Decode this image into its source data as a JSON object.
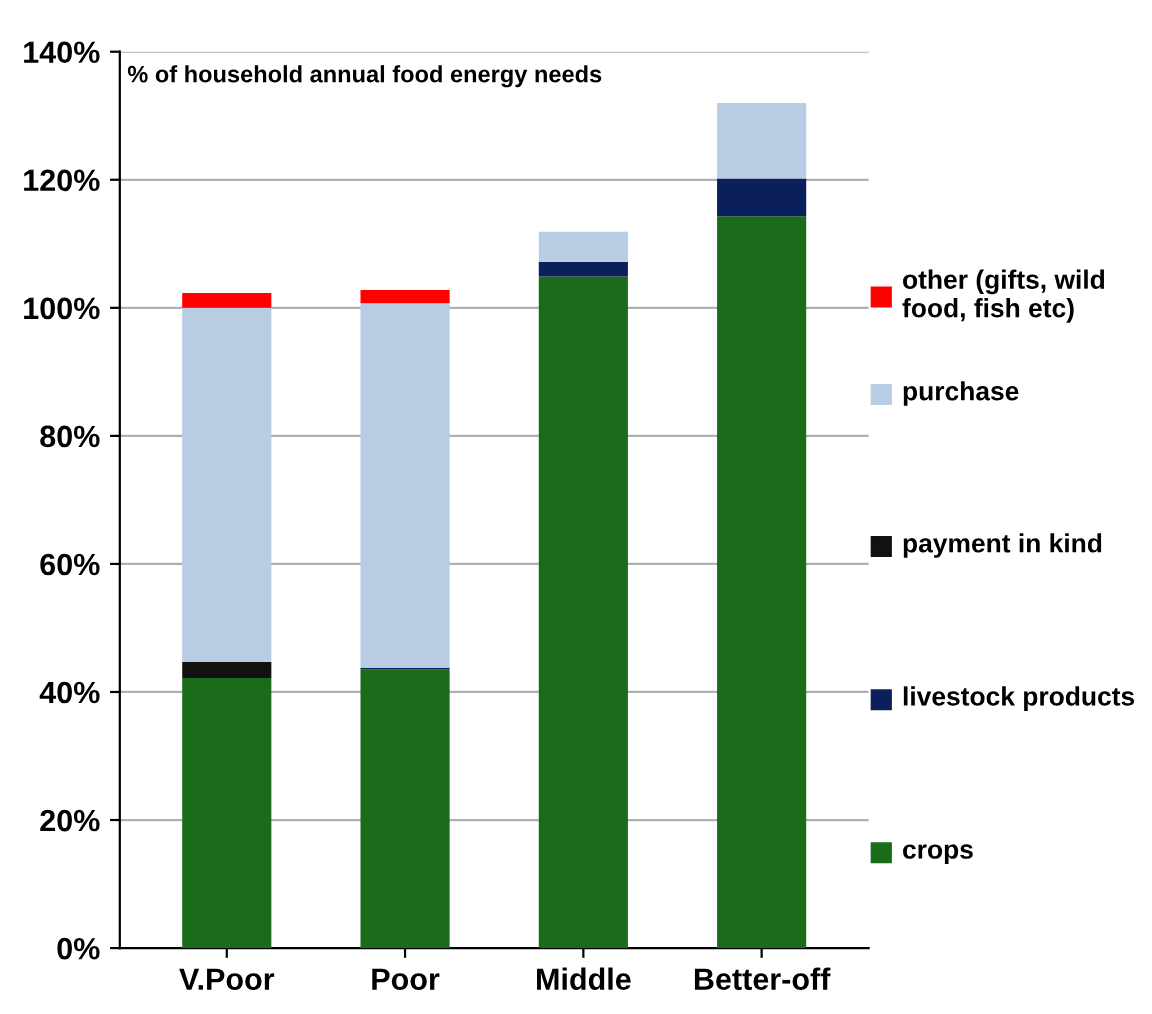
{
  "chart_data": {
    "type": "bar",
    "stacked": true,
    "ylabel": "% of household annual food energy needs",
    "categories": [
      "V.Poor",
      "Poor",
      "Middle",
      "Better-off"
    ],
    "series": [
      {
        "name": "crops",
        "color": "#1a6b1a",
        "values": [
          42.2,
          43.5,
          104.9,
          114.3
        ]
      },
      {
        "name": "livestock products",
        "color": "#0b1f5c",
        "values": [
          0,
          0.3,
          2.3,
          5.9
        ]
      },
      {
        "name": "payment in kind",
        "color": "#111111",
        "values": [
          2.5,
          0,
          0,
          0
        ]
      },
      {
        "name": "purchase",
        "color": "#b8cce4",
        "values": [
          55.3,
          56.9,
          4.7,
          11.8
        ]
      },
      {
        "name": "other (gifts, wild food, fish etc)",
        "color": "#ff0000",
        "values": [
          2.3,
          2.1,
          0,
          0
        ]
      }
    ],
    "ylim": [
      0,
      140
    ],
    "yticks": [
      {
        "value": 0,
        "label": "0%"
      },
      {
        "value": 20,
        "label": "20%"
      },
      {
        "value": 40,
        "label": "40%"
      },
      {
        "value": 60,
        "label": "60%"
      },
      {
        "value": 80,
        "label": "80%"
      },
      {
        "value": 100,
        "label": "100%"
      },
      {
        "value": 120,
        "label": "120%"
      },
      {
        "value": 140,
        "label": "140%"
      }
    ],
    "grid": "y",
    "legend": "right"
  }
}
